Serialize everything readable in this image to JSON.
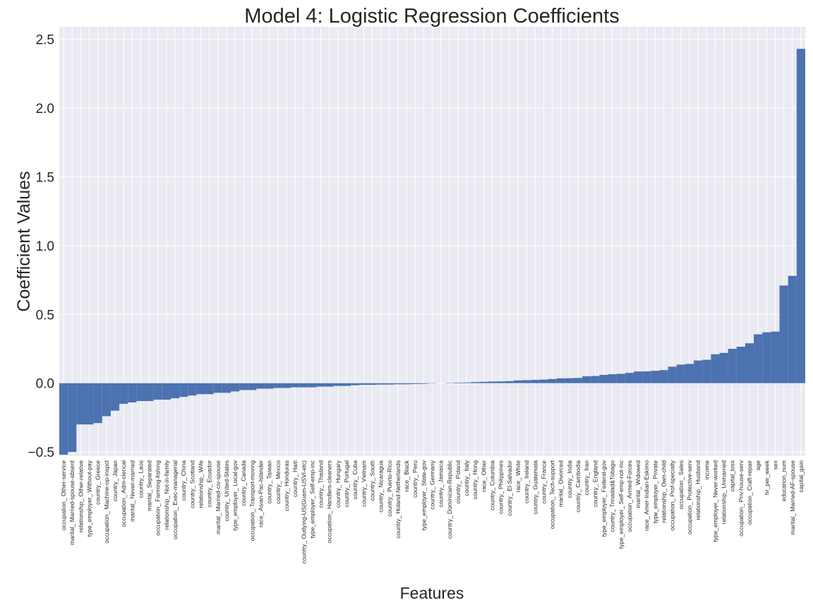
{
  "chart_data": {
    "type": "bar",
    "title": "Model 4: Logistic Regression Coefficients",
    "xlabel": "Features",
    "ylabel": "Coefficient Values",
    "color": "#4c72b0",
    "grid": true,
    "ylim": [
      -0.53,
      2.59
    ],
    "yticks": [
      {
        "value": -0.5,
        "label": "−0.5"
      },
      {
        "value": 0,
        "label": "0.0"
      },
      {
        "value": 0.5,
        "label": "0.5"
      },
      {
        "value": 1,
        "label": "1.0"
      },
      {
        "value": 1.5,
        "label": "1.5"
      },
      {
        "value": 2,
        "label": "2.0"
      },
      {
        "value": 2.5,
        "label": "2.5"
      }
    ],
    "categories": [
      "occupation_ Other-service",
      "marital_ Married-spouse-absent",
      "relationship_ Other-relative",
      "type_employer_ Without-pay",
      "country_ Greece",
      "occupation_ Machine-op-inspct",
      "country_ Japan",
      "occupation_ Adm-clerical",
      "marital_ Never-married",
      "country_ Laos",
      "marital_ Separated",
      "occupation_ Farming-fishing",
      "relationship_ Not-in-family",
      "occupation_ Exec-managerial",
      "country_ China",
      "country_ Scotland",
      "relationship_ Wife",
      "country_ Ecuador",
      "marital_ Married-civ-spouse",
      "country_ United-States",
      "type_employer_ Local-gov",
      "country_ Canada",
      "occupation_ Transport-moving",
      "race_ Asian-Pac-Islander",
      "country_ Taiwan",
      "country_ Mexico",
      "country_ Honduras",
      "country_ Haiti",
      "country_ Outlying-US(Guam-USVI-etc)",
      "type_employer_ Self-emp-inc",
      "country_ Thailand",
      "occupation_ Handlers-cleaners",
      "country_ Hungary",
      "country_ Portugal",
      "country_ Cuba",
      "country_ Vietnam",
      "country_ South",
      "country_ Nicaragua",
      "country_ Puerto-Rico",
      "country_ Holand-Netherlands",
      "race_ Black",
      "country_ Peru",
      "type_employer_ State-gov",
      "country_ Germany",
      "country_ Jamaica",
      "country_ Dominican-Republic",
      "country_ Poland",
      "country_ Italy",
      "country_ Hong",
      "race_ Other",
      "country_ Columbia",
      "country_ Philippines",
      "country_ El-Salvador",
      "race_ White",
      "country_ Ireland",
      "country_ Guatemala",
      "country_ France",
      "occupation_ Tech-support",
      "marital_ Divorced",
      "country_ India",
      "country_ Cambodia",
      "country_ Iran",
      "country_ England",
      "type_employer_ Federal-gov",
      "country_ Trinadad&Tobago",
      "type_employer_ Self-emp-not-inc",
      "occupation_ Armed-Forces",
      "marital_ Widowed",
      "race_ Amer-Indian-Eskimo",
      "type_employer_ Private",
      "relationship_ Own-child",
      "occupation_ Prof-specialty",
      "occupation_ Sales",
      "occupation_ Protective-serv",
      "relationship_ Husband",
      "income",
      "type_employer_ Never-worked",
      "relationship_ Unmarried",
      "capital_loss",
      "occupation_ Priv-house-serv",
      "occupation_ Craft-repair",
      "age",
      "hr_per_week",
      "sex",
      "education_num",
      "marital_ Married-AF-spouse",
      "capital_gain"
    ],
    "values": [
      -0.52,
      -0.5,
      -0.3,
      -0.3,
      -0.29,
      -0.24,
      -0.2,
      -0.15,
      -0.14,
      -0.13,
      -0.13,
      -0.12,
      -0.12,
      -0.11,
      -0.1,
      -0.09,
      -0.08,
      -0.08,
      -0.07,
      -0.07,
      -0.06,
      -0.05,
      -0.05,
      -0.04,
      -0.04,
      -0.035,
      -0.035,
      -0.03,
      -0.03,
      -0.03,
      -0.025,
      -0.025,
      -0.02,
      -0.02,
      -0.015,
      -0.012,
      -0.012,
      -0.01,
      -0.01,
      -0.008,
      -0.008,
      -0.006,
      -0.005,
      -0.002,
      0,
      0.002,
      0.004,
      0.005,
      0.008,
      0.01,
      0.012,
      0.013,
      0.015,
      0.02,
      0.022,
      0.024,
      0.026,
      0.03,
      0.035,
      0.036,
      0.038,
      0.05,
      0.052,
      0.06,
      0.065,
      0.068,
      0.075,
      0.085,
      0.086,
      0.09,
      0.095,
      0.12,
      0.135,
      0.14,
      0.165,
      0.17,
      0.21,
      0.22,
      0.25,
      0.265,
      0.29,
      0.355,
      0.37,
      0.375,
      0.71,
      0.78,
      2.43
    ]
  }
}
